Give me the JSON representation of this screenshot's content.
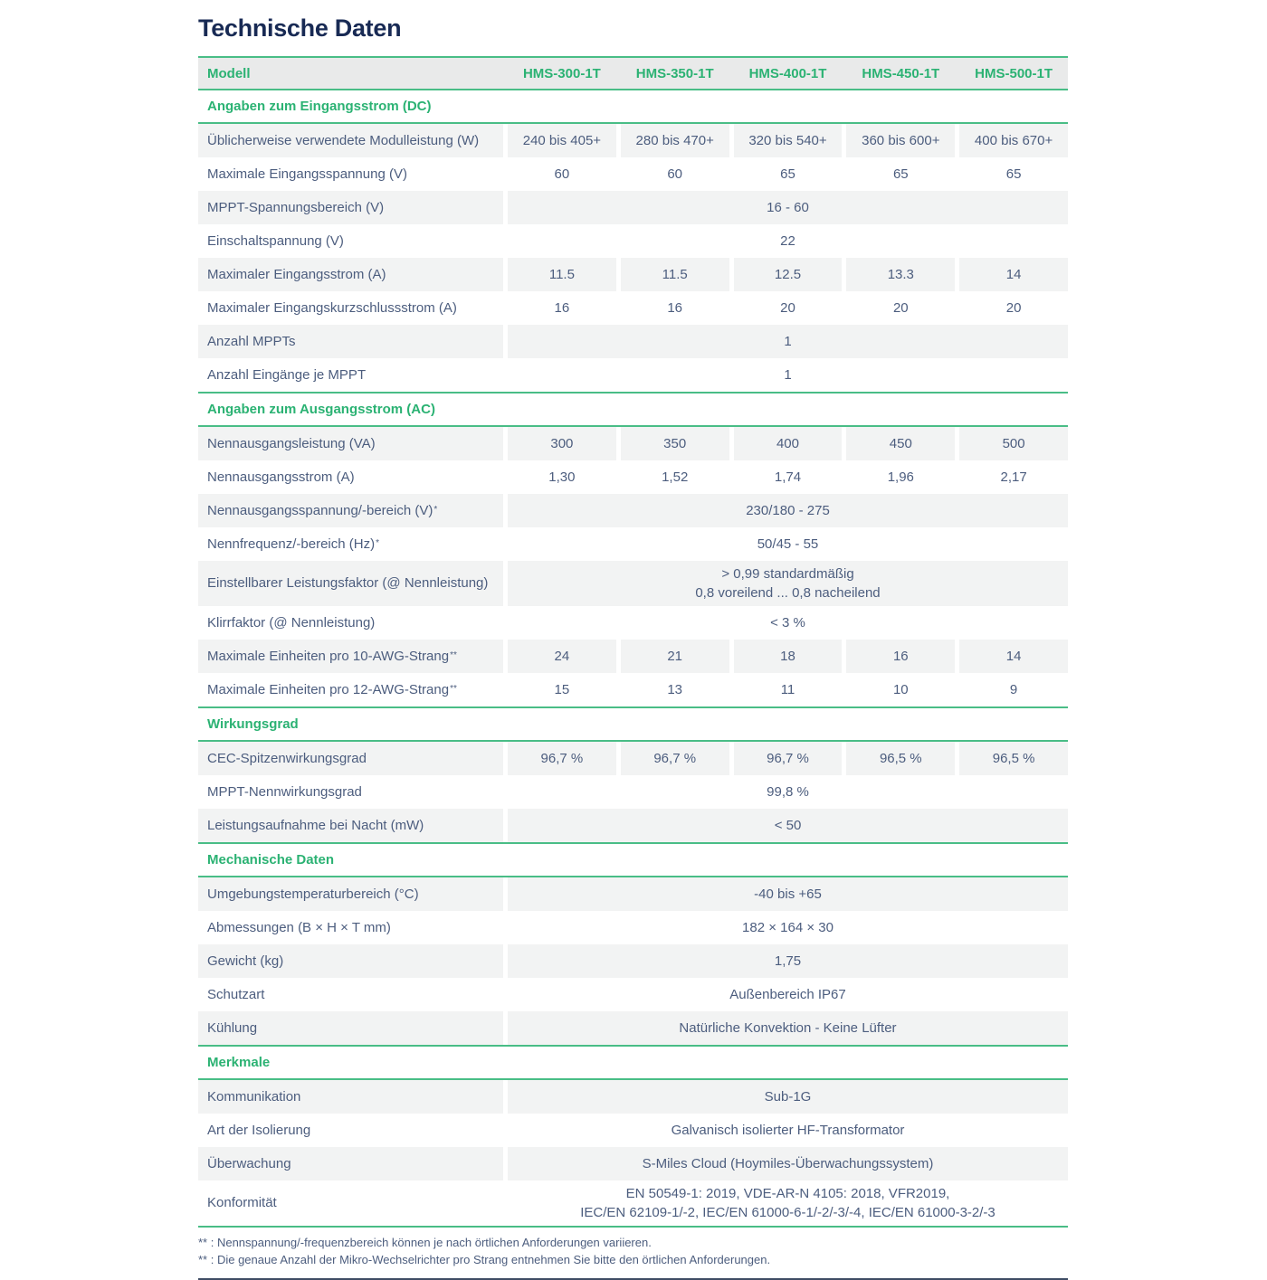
{
  "page": {
    "title": "Technische Daten"
  },
  "colors": {
    "accent_green": "#2bb273",
    "line_green": "#49bd86",
    "title_navy": "#182a54",
    "body_slate": "#4c5d7e",
    "header_bg": "#e9eaea",
    "stripe_bg": "#f2f3f3",
    "footnote_rule": "#3e4c64"
  },
  "table": {
    "header": {
      "label": "Modell",
      "models": [
        "HMS-300-1T",
        "HMS-350-1T",
        "HMS-400-1T",
        "HMS-450-1T",
        "HMS-500-1T"
      ]
    },
    "sections": [
      {
        "title": "Angaben zum Eingangsstrom (DC)",
        "rows": [
          {
            "label": "Üblicherweise verwendete Modulleistung (W)",
            "values": [
              "240 bis 405+",
              "280 bis 470+",
              "320 bis 540+",
              "360 bis 600+",
              "400 bis 670+"
            ]
          },
          {
            "label": "Maximale Eingangsspannung (V)",
            "values": [
              "60",
              "60",
              "65",
              "65",
              "65"
            ]
          },
          {
            "label": "MPPT-Spannungsbereich (V)",
            "span": "16 - 60"
          },
          {
            "label": "Einschaltspannung (V)",
            "span": "22"
          },
          {
            "label": "Maximaler Eingangsstrom (A)",
            "values": [
              "11.5",
              "11.5",
              "12.5",
              "13.3",
              "14"
            ]
          },
          {
            "label": "Maximaler Eingangskurzschlussstrom (A)",
            "values": [
              "16",
              "16",
              "20",
              "20",
              "20"
            ]
          },
          {
            "label": "Anzahl MPPTs",
            "span": "1"
          },
          {
            "label": "Anzahl Eingänge je MPPT",
            "span": "1"
          }
        ]
      },
      {
        "title": "Angaben zum Ausgangsstrom (AC)",
        "rows": [
          {
            "label": "Nennausgangsleistung (VA)",
            "values": [
              "300",
              "350",
              "400",
              "450",
              "500"
            ]
          },
          {
            "label": "Nennausgangsstrom (A)",
            "values": [
              "1,30",
              "1,52",
              "1,74",
              "1,96",
              "2,17"
            ]
          },
          {
            "label": "Nennausgangsspannung/-bereich (V)",
            "sup": "*",
            "span": "230/180 - 275"
          },
          {
            "label": "Nennfrequenz/-bereich (Hz)",
            "sup": "*",
            "span": "50/45 - 55"
          },
          {
            "label": "Einstellbarer Leistungsfaktor (@ Nennleistung)",
            "span_lines": [
              "> 0,99 standardmäßig",
              "0,8 voreilend ... 0,8 nacheilend"
            ]
          },
          {
            "label": "Klirrfaktor (@ Nennleistung)",
            "span": "< 3 %"
          },
          {
            "label": "Maximale Einheiten pro 10-AWG-Strang",
            "sup": "**",
            "values": [
              "24",
              "21",
              "18",
              "16",
              "14"
            ]
          },
          {
            "label": "Maximale Einheiten pro 12-AWG-Strang",
            "sup": "**",
            "values": [
              "15",
              "13",
              "11",
              "10",
              "9"
            ]
          }
        ]
      },
      {
        "title": "Wirkungsgrad",
        "rows": [
          {
            "label": "CEC-Spitzenwirkungsgrad",
            "values": [
              "96,7 %",
              "96,7 %",
              "96,7 %",
              "96,5 %",
              "96,5 %"
            ]
          },
          {
            "label": "MPPT-Nennwirkungsgrad",
            "span": "99,8 %"
          },
          {
            "label": "Leistungsaufnahme bei Nacht (mW)",
            "span": "< 50"
          }
        ]
      },
      {
        "title": "Mechanische Daten",
        "rows": [
          {
            "label": "Umgebungstemperaturbereich (°C)",
            "span": "-40 bis +65"
          },
          {
            "label": "Abmessungen (B × H × T mm)",
            "span": "182 × 164 × 30"
          },
          {
            "label": "Gewicht (kg)",
            "span": "1,75"
          },
          {
            "label": "Schutzart",
            "span": "Außenbereich IP67"
          },
          {
            "label": "Kühlung",
            "span": "Natürliche Konvektion - Keine Lüfter"
          }
        ]
      },
      {
        "title": "Merkmale",
        "rows": [
          {
            "label": "Kommunikation",
            "span": "Sub-1G"
          },
          {
            "label": "Art der Isolierung",
            "span": "Galvanisch isolierter HF-Transformator"
          },
          {
            "label": "Überwachung",
            "span": "S-Miles Cloud (Hoymiles-Überwachungssystem)"
          },
          {
            "label": "Konformität",
            "span_lines": [
              "EN 50549-1: 2019, VDE-AR-N 4105: 2018, VFR2019,",
              "IEC/EN 62109-1/-2, IEC/EN 61000-6-1/-2/-3/-4, IEC/EN 61000-3-2/-3"
            ]
          }
        ]
      }
    ],
    "footnotes": [
      "** : Nennspannung/-frequenzbereich können je nach örtlichen Anforderungen variieren.",
      "** : Die genaue Anzahl der Mikro-Wechselrichter pro Strang entnehmen Sie bitte den örtlichen Anforderungen."
    ]
  }
}
